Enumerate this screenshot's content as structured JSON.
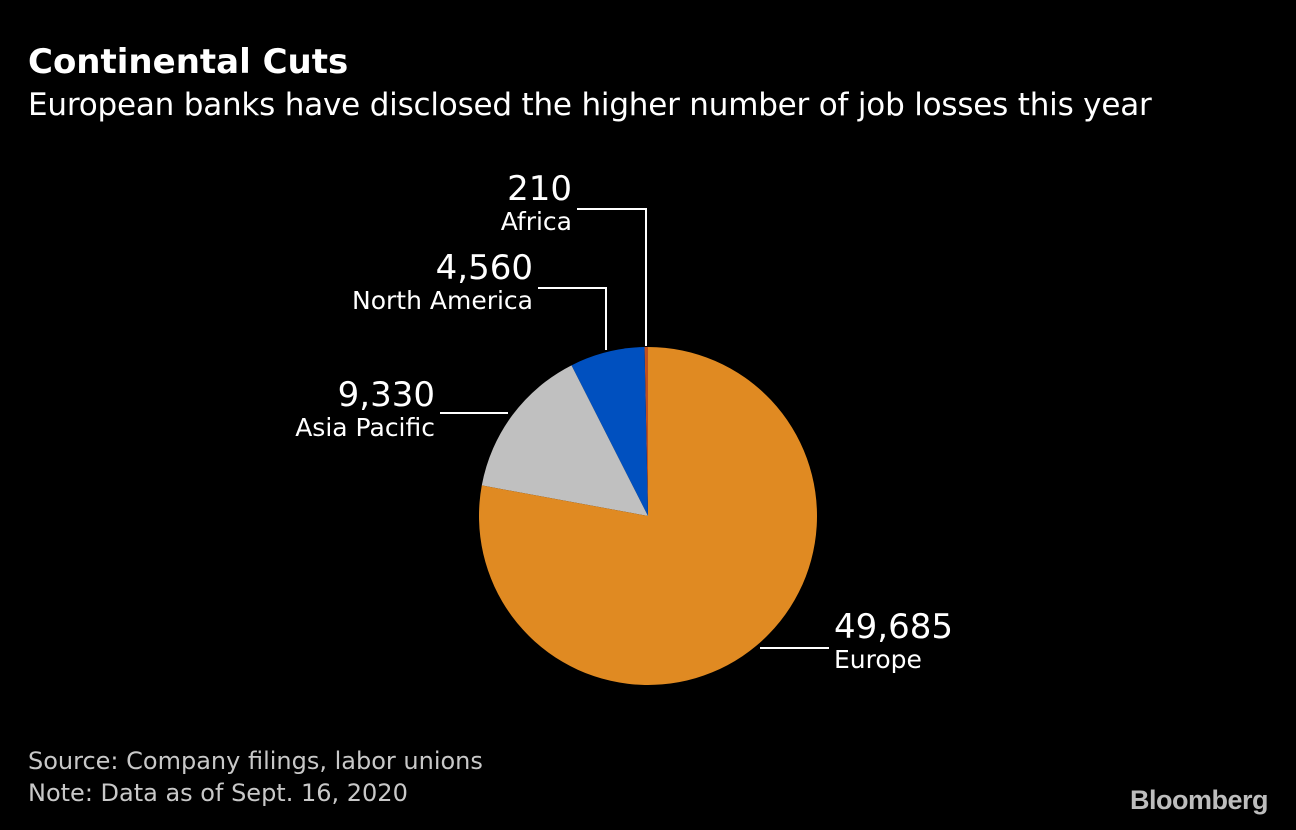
{
  "header": {
    "title": "Continental Cuts",
    "subtitle": "European banks have disclosed the higher number of job losses this year"
  },
  "chart_data": {
    "type": "pie",
    "slices": [
      {
        "label": "Africa",
        "value": 210,
        "value_label": "210",
        "color": "#c0501f"
      },
      {
        "label": "North America",
        "value": 4560,
        "value_label": "4,560",
        "color": "#0050bf"
      },
      {
        "label": "Asia Pacific",
        "value": 9330,
        "value_label": "9,330",
        "color": "#c0c0c0"
      },
      {
        "label": "Europe",
        "value": 49685,
        "value_label": "49,685",
        "color": "#e08a22"
      }
    ],
    "start_angle_deg": 0,
    "direction": "counterclockwise",
    "leader_line_color": "#ffffff"
  },
  "footer": {
    "source": "Source: Company filings, labor unions",
    "note": "Note: Data as of Sept. 16, 2020",
    "brand": "Bloomberg"
  },
  "colors": {
    "background": "#000000",
    "text": "#ffffff",
    "footer_text": "#c8c8c8"
  }
}
